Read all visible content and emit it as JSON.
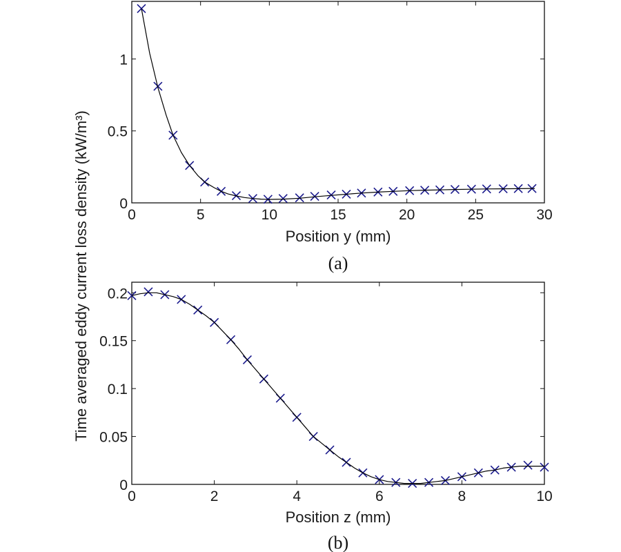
{
  "shared_ylabel": "Time averaged eddy current loss density (kW/m³)",
  "chart_data": [
    {
      "type": "line",
      "panel_label": "(a)",
      "title": "",
      "xlabel": "Position y (mm)",
      "ylabel": "Time averaged eddy current loss density (kW/m³)",
      "xlim": [
        0,
        30
      ],
      "ylim": [
        0,
        1.4
      ],
      "xticks": [
        0,
        5,
        10,
        15,
        20,
        25,
        30
      ],
      "xtick_labels": [
        "0",
        "5",
        "10",
        "15",
        "20",
        "25",
        "30"
      ],
      "yticks": [
        0,
        0.5,
        1
      ],
      "ytick_labels": [
        "0",
        "0.5",
        "1"
      ],
      "grid": false,
      "series": [
        {
          "name": "markers",
          "style": "x-marker",
          "color": "#1a1a8c",
          "x": [
            0.7,
            1.9,
            3.0,
            4.2,
            5.3,
            6.5,
            7.6,
            8.8,
            9.9,
            11.0,
            12.2,
            13.3,
            14.5,
            15.6,
            16.7,
            17.9,
            19.0,
            20.2,
            21.3,
            22.4,
            23.5,
            24.7,
            25.8,
            27.0,
            28.1,
            29.1
          ],
          "y": [
            1.35,
            0.81,
            0.47,
            0.26,
            0.145,
            0.08,
            0.05,
            0.03,
            0.025,
            0.03,
            0.035,
            0.045,
            0.055,
            0.06,
            0.068,
            0.075,
            0.08,
            0.085,
            0.088,
            0.09,
            0.093,
            0.095,
            0.097,
            0.098,
            0.099,
            0.1
          ]
        },
        {
          "name": "curve",
          "style": "line",
          "color": "#000000",
          "x": [
            0.7,
            1.3,
            1.9,
            2.5,
            3.0,
            3.6,
            4.2,
            4.8,
            5.3,
            6.0,
            6.5,
            7.0,
            7.6,
            8.2,
            8.8,
            9.4,
            9.9,
            11.0,
            12.2,
            13.3,
            14.5,
            15.6,
            16.7,
            17.9,
            19.0,
            20.2,
            21.3,
            22.4,
            23.5,
            24.7,
            25.8,
            27.0,
            28.1,
            29.3
          ],
          "y": [
            1.35,
            1.04,
            0.8,
            0.61,
            0.47,
            0.35,
            0.26,
            0.19,
            0.145,
            0.105,
            0.08,
            0.062,
            0.048,
            0.037,
            0.03,
            0.026,
            0.024,
            0.026,
            0.032,
            0.042,
            0.052,
            0.06,
            0.068,
            0.075,
            0.08,
            0.085,
            0.088,
            0.09,
            0.093,
            0.095,
            0.097,
            0.098,
            0.099,
            0.1
          ]
        }
      ]
    },
    {
      "type": "line",
      "panel_label": "(b)",
      "title": "",
      "xlabel": "Position z (mm)",
      "ylabel": "Time averaged eddy current loss density (kW/m³)",
      "xlim": [
        0,
        10
      ],
      "ylim": [
        0,
        0.211
      ],
      "xticks": [
        0,
        2,
        4,
        6,
        8,
        10
      ],
      "xtick_labels": [
        "0",
        "2",
        "4",
        "6",
        "8",
        "10"
      ],
      "yticks": [
        0,
        0.05,
        0.1,
        0.15,
        0.2
      ],
      "ytick_labels": [
        "0",
        "0.05",
        "0.1",
        "0.15",
        "0.2"
      ],
      "grid": false,
      "series": [
        {
          "name": "markers",
          "style": "x-marker",
          "color": "#1a1a8c",
          "x": [
            0,
            0.4,
            0.8,
            1.2,
            1.6,
            2.0,
            2.4,
            2.8,
            3.2,
            3.6,
            4.0,
            4.4,
            4.8,
            5.2,
            5.6,
            6.0,
            6.4,
            6.8,
            7.2,
            7.6,
            8.0,
            8.4,
            8.8,
            9.2,
            9.6,
            10.0
          ],
          "y": [
            0.197,
            0.201,
            0.198,
            0.193,
            0.182,
            0.169,
            0.151,
            0.13,
            0.11,
            0.09,
            0.07,
            0.05,
            0.036,
            0.023,
            0.012,
            0.005,
            0.002,
            0.001,
            0.002,
            0.004,
            0.008,
            0.012,
            0.015,
            0.018,
            0.02,
            0.018
          ]
        },
        {
          "name": "curve",
          "style": "line",
          "color": "#000000",
          "x": [
            0,
            0.2,
            0.4,
            0.6,
            0.8,
            1.0,
            1.2,
            1.4,
            1.6,
            1.8,
            2.0,
            2.2,
            2.4,
            2.6,
            2.8,
            3.0,
            3.2,
            3.4,
            3.6,
            3.8,
            4.0,
            4.2,
            4.4,
            4.6,
            4.8,
            5.0,
            5.2,
            5.4,
            5.6,
            5.8,
            6.0,
            6.2,
            6.4,
            6.6,
            6.8,
            7.0,
            7.2,
            7.4,
            7.6,
            7.8,
            8.0,
            8.2,
            8.4,
            8.6,
            8.8,
            9.0,
            9.2,
            9.4,
            9.6,
            9.8,
            10.0
          ],
          "y": [
            0.197,
            0.199,
            0.2,
            0.2,
            0.198,
            0.196,
            0.193,
            0.188,
            0.182,
            0.176,
            0.169,
            0.16,
            0.151,
            0.141,
            0.13,
            0.12,
            0.11,
            0.1,
            0.09,
            0.08,
            0.07,
            0.06,
            0.05,
            0.043,
            0.036,
            0.029,
            0.023,
            0.017,
            0.012,
            0.008,
            0.005,
            0.003,
            0.002,
            0.001,
            0.001,
            0.001,
            0.002,
            0.003,
            0.004,
            0.006,
            0.008,
            0.01,
            0.012,
            0.014,
            0.015,
            0.017,
            0.018,
            0.019,
            0.019,
            0.019,
            0.019
          ]
        }
      ]
    }
  ]
}
